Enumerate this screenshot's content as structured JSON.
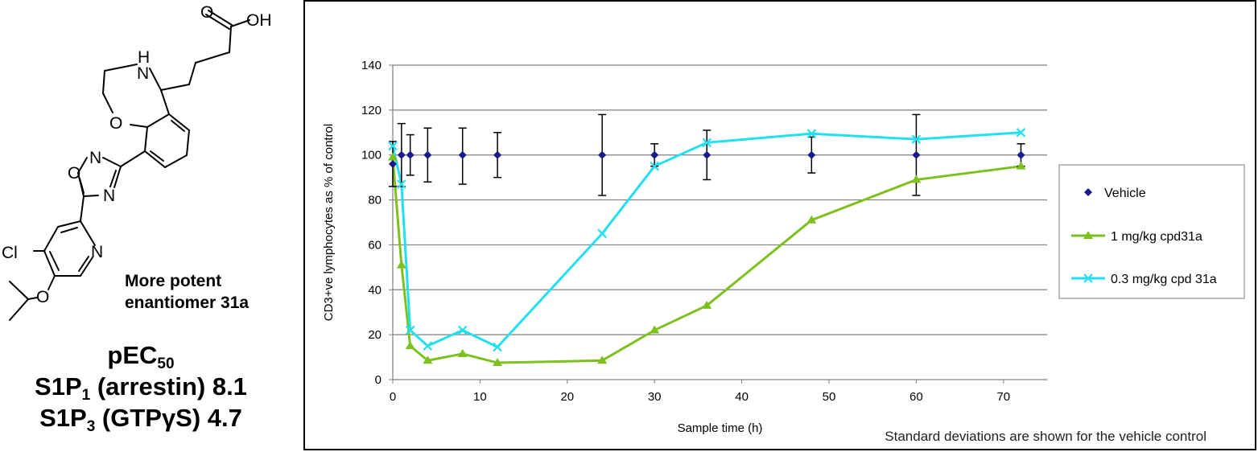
{
  "compound": {
    "atoms": {
      "carbonyl_o": "O",
      "hydroxyl": "OH",
      "amine": "H",
      "amine_n": "N",
      "ether_o": "O",
      "oxadiazole_n1": "N",
      "oxadiazole_o": "O",
      "oxadiazole_n2": "N",
      "chloro": "Cl",
      "pyridine_n": "N",
      "isopropoxy_o": "O"
    },
    "caption_line1": "More potent",
    "caption_line2": "enantiomer 31a",
    "pec_label": "pEC",
    "pec_sub": "50",
    "s1p1_prefix": "S1P",
    "s1p1_sub": "1",
    "s1p1_rest": " (arrestin) 8.1",
    "s1p3_prefix": "S1P",
    "s1p3_sub": "3",
    "s1p3_rest": " (GTPγS)  4.7"
  },
  "chart_data": {
    "type": "line",
    "title": "",
    "xlabel": "Sample time (h)",
    "ylabel": "CD3+ve lymphocytes as % of control",
    "xlim": [
      0,
      75
    ],
    "ylim": [
      0,
      140
    ],
    "xticks": [
      0,
      10,
      20,
      30,
      40,
      50,
      60,
      70
    ],
    "yticks": [
      0,
      20,
      40,
      60,
      80,
      100,
      120,
      140
    ],
    "grid": "horizontal",
    "legend_position": "right",
    "note": "Standard deviations are shown for the vehicle control",
    "series": [
      {
        "name": "Vehicle",
        "color": "#1a1a8c",
        "marker": "diamond",
        "line": false,
        "x": [
          0,
          1,
          2,
          4,
          8,
          12,
          24,
          30,
          36,
          48,
          60,
          72
        ],
        "y": [
          96,
          100,
          100,
          100,
          100,
          100,
          100,
          100,
          100,
          100,
          100,
          100
        ],
        "err_low": [
          86,
          86,
          91,
          88,
          87,
          90,
          82,
          95,
          89,
          92,
          82,
          95
        ],
        "err_high": [
          106,
          114,
          109,
          112,
          112,
          110,
          118,
          105,
          111,
          108,
          118,
          105
        ]
      },
      {
        "name": "1 mg/kg cpd31a",
        "color": "#7dc11e",
        "marker": "triangle",
        "line": true,
        "x": [
          0,
          1,
          2,
          4,
          8,
          12,
          24,
          30,
          36,
          48,
          60,
          72
        ],
        "y": [
          99,
          51,
          15,
          8.5,
          11.5,
          7.5,
          8.5,
          22,
          33,
          71,
          89,
          95
        ]
      },
      {
        "name": "0.3 mg/kg cpd 31a",
        "color": "#22e0f0",
        "marker": "x",
        "line": true,
        "x": [
          0,
          1,
          2,
          4,
          8,
          12,
          24,
          30,
          36,
          48,
          60,
          72
        ],
        "y": [
          104,
          87,
          22,
          15,
          22,
          14.5,
          65,
          95,
          105.5,
          109.5,
          107,
          110
        ]
      }
    ]
  }
}
